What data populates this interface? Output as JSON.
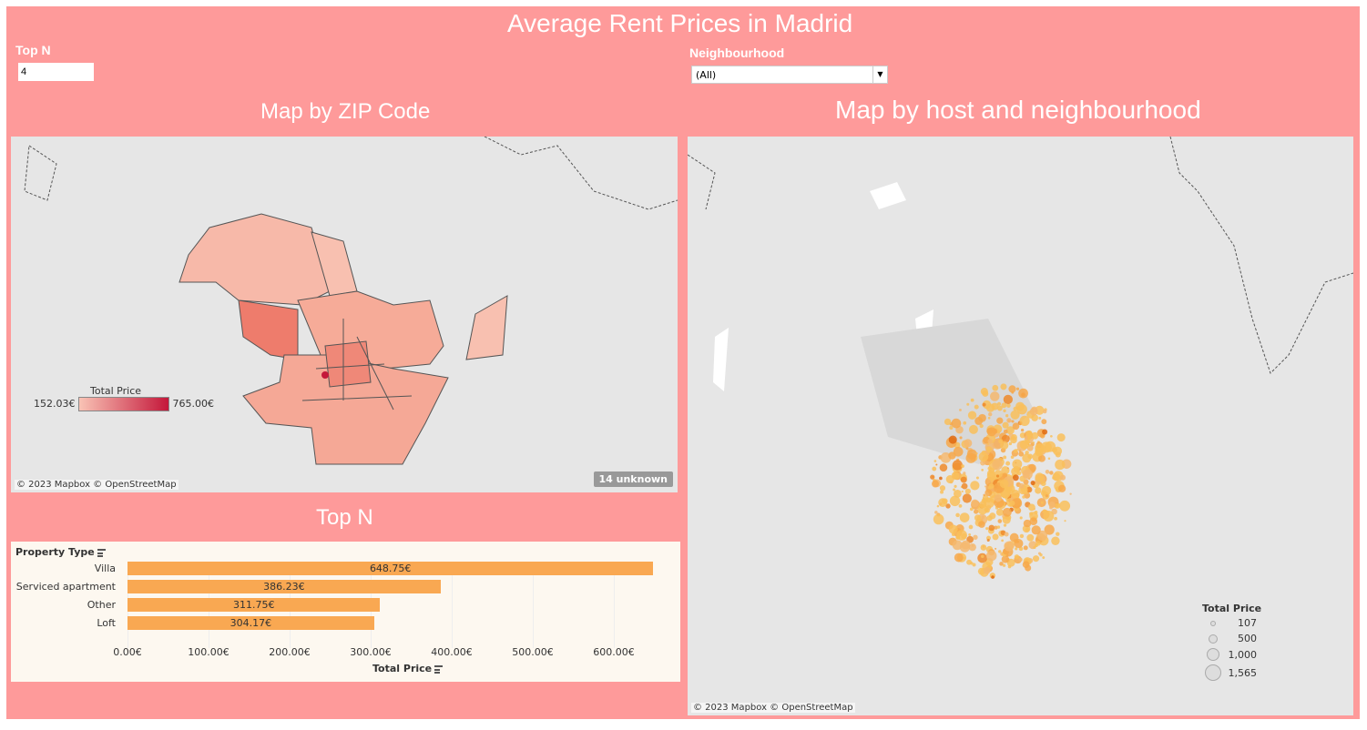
{
  "dashboard": {
    "title": "Average Rent Prices in Madrid"
  },
  "filters": {
    "topn_label": "Top N",
    "topn_value": "4",
    "neigh_label": "Neighbourhood",
    "neigh_value": "(All)"
  },
  "zip_map": {
    "title": "Map by ZIP Code",
    "legend_title": "Total Price",
    "legend_min": "152.03€",
    "legend_max": "765.00€",
    "attribution": "© 2023 Mapbox © OpenStreetMap",
    "unknown": "14 unknown",
    "color_low": "#f9c3b5",
    "color_high": "#c4173a"
  },
  "host_map": {
    "title": "Map by host and neighbourhood",
    "legend_title": "Total Price",
    "legend_items": [
      "107",
      "500",
      "1,000",
      "1,565"
    ],
    "attribution": "© 2023 Mapbox © OpenStreetMap"
  },
  "topn": {
    "title": "Top N"
  },
  "chart_data": {
    "type": "bar",
    "title": "Top N",
    "ylabel": "Property Type",
    "xlabel": "Total Price",
    "categories": [
      "Villa",
      "Serviced apartment",
      "Other",
      "Loft"
    ],
    "values": [
      648.75,
      386.23,
      311.75,
      304.17
    ],
    "value_labels": [
      "648.75€",
      "386.23€",
      "311.75€",
      "304.17€"
    ],
    "xlim": [
      0,
      680
    ],
    "ticks": [
      "0.00€",
      "100.00€",
      "200.00€",
      "300.00€",
      "400.00€",
      "500.00€",
      "600.00€"
    ],
    "color": "#f9a852"
  }
}
